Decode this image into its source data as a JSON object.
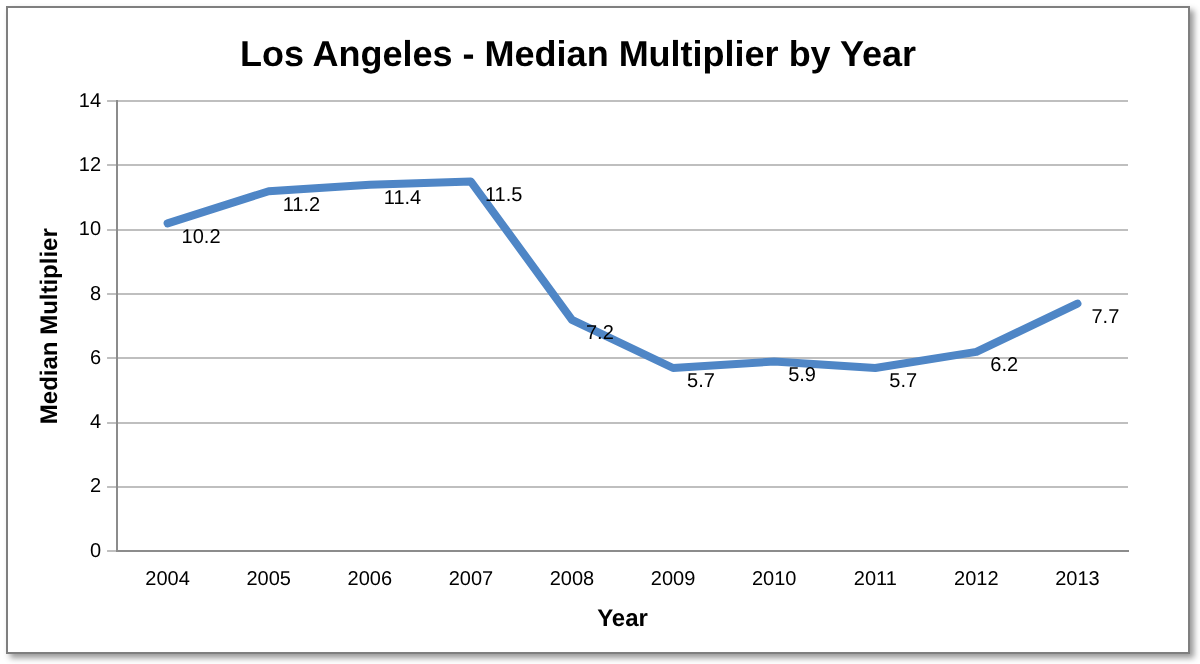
{
  "chart_data": {
    "type": "line",
    "title": "Los Angeles - Median Multiplier by Year",
    "xlabel": "Year",
    "ylabel": "Median Multiplier",
    "categories": [
      "2004",
      "2005",
      "2006",
      "2007",
      "2008",
      "2009",
      "2010",
      "2011",
      "2012",
      "2013"
    ],
    "series": [
      {
        "color": "#4f86c6",
        "values": [
          10.2,
          11.2,
          11.4,
          11.5,
          7.2,
          5.7,
          5.9,
          5.7,
          6.2,
          7.7
        ]
      }
    ],
    "ylim": [
      0,
      14
    ],
    "yticks": [
      0,
      2,
      4,
      6,
      8,
      10,
      12,
      14
    ],
    "grid": "y",
    "legend": false,
    "marker": "none",
    "line_style": "solid",
    "data_labels": true
  }
}
